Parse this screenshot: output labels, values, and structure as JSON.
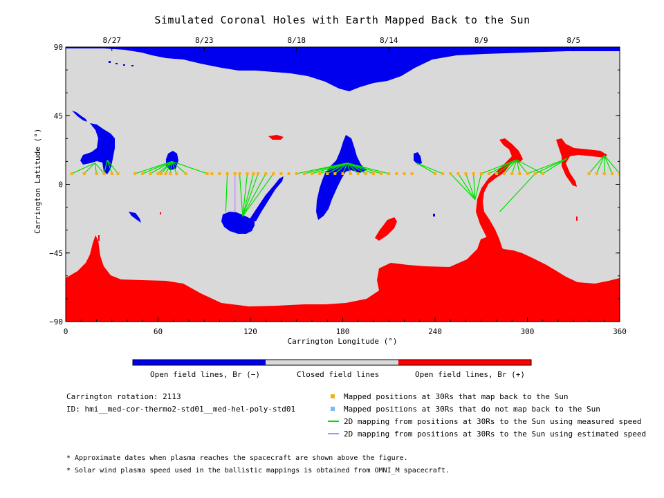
{
  "chart_data": {
    "type": "map",
    "title": "Simulated Coronal Holes with Earth Mapped Back to the Sun",
    "xlabel": "Carrington Longitude (°)",
    "ylabel": "Carrington Latitude (°)",
    "xlim": [
      0,
      360
    ],
    "ylim": [
      -90,
      90
    ],
    "x_ticks": [
      0,
      60,
      120,
      180,
      240,
      300,
      360
    ],
    "y_ticks": [
      -90,
      -45,
      0,
      45,
      90
    ],
    "top_axis": {
      "ticks": [
        {
          "lon": 30,
          "label": "8/27"
        },
        {
          "lon": 90,
          "label": "8/23"
        },
        {
          "lon": 150,
          "label": "8/18"
        },
        {
          "lon": 210,
          "label": "8/14"
        },
        {
          "lon": 270,
          "label": "8/9"
        },
        {
          "lon": 330,
          "label": "8/5"
        }
      ]
    },
    "colorbar": [
      {
        "label": "Open field lines, Br (−)",
        "color": "#0000ee"
      },
      {
        "label": "Closed field lines",
        "color": "#d9d9d9"
      },
      {
        "label": "Open field lines, Br (+)",
        "color": "#ff0000"
      }
    ],
    "legend": [
      {
        "label": "Mapped positions at 30Rs that map back to the Sun",
        "color": "#f2b01e",
        "kind": "square"
      },
      {
        "label": "Mapped positions at 30Rs that do not map back to the Sun",
        "color": "#7ab8f0",
        "kind": "square"
      },
      {
        "label": "2D mapping from positions at 30Rs to the Sun using measured speed",
        "color": "#00e000",
        "kind": "line"
      },
      {
        "label": "2D mapping from positions at 30Rs to the Sun using estimated speed",
        "color": "#c080ff",
        "kind": "line"
      }
    ],
    "mapping_latitude": 7,
    "mapping_points_lon": [
      4,
      12,
      20,
      25,
      30,
      34,
      45,
      50,
      55,
      60,
      62,
      65,
      68,
      72,
      78,
      92,
      95,
      100,
      105,
      110,
      113,
      118,
      122,
      125,
      130,
      135,
      140,
      145,
      150,
      155,
      160,
      165,
      170,
      175,
      180,
      185,
      190,
      195,
      200,
      205,
      210,
      215,
      220,
      225,
      240,
      245,
      250,
      255,
      260,
      265,
      270,
      275,
      280,
      285,
      290,
      295,
      300,
      305,
      310,
      340,
      345,
      350,
      355,
      360
    ],
    "footpoints": [
      {
        "lon": 19,
        "lat": 14,
        "from": [
          4,
          12,
          20,
          25
        ]
      },
      {
        "lon": 27,
        "lat": 16,
        "from": [
          25,
          30,
          34
        ]
      },
      {
        "lon": 69,
        "lat": 15,
        "from": [
          45,
          50,
          55,
          60,
          62,
          65,
          68,
          72,
          78,
          92
        ]
      },
      {
        "lon": 104,
        "lat": -18,
        "from": [
          105
        ]
      },
      {
        "lon": 115,
        "lat": -21,
        "from": [
          113,
          118,
          122,
          125,
          130,
          135
        ]
      },
      {
        "lon": 183,
        "lat": 14,
        "from": [
          150,
          155,
          160,
          165,
          170,
          175,
          180,
          185,
          190,
          195,
          200,
          205,
          210
        ]
      },
      {
        "lon": 228,
        "lat": 14,
        "from": [
          240,
          245
        ]
      },
      {
        "lon": 266,
        "lat": -10,
        "from": [
          250,
          255,
          260,
          265,
          270
        ]
      },
      {
        "lon": 282,
        "lat": -18,
        "from": [
          305
        ]
      },
      {
        "lon": 293,
        "lat": 16,
        "from": [
          270,
          275,
          280,
          285,
          290,
          295,
          300,
          310
        ]
      },
      {
        "lon": 326,
        "lat": 17,
        "from": [
          300,
          305,
          310
        ]
      },
      {
        "lon": 350,
        "lat": 19,
        "from": [
          340,
          345,
          350,
          355,
          360
        ]
      }
    ],
    "estimated_mapping": [
      {
        "from_lon": 110,
        "to_lon": 110,
        "to_lat": -18
      }
    ]
  },
  "info": {
    "rotation": "Carrington rotation: 2113",
    "id": "ID: hmi__med-cor-thermo2-std01__med-hel-poly-std01"
  },
  "footnotes": [
    "* Approximate dates when plasma reaches the spacecraft are shown above the figure.",
    "* Solar wind plasma speed used in the ballistic mappings is obtained from OMNI_M spacecraft."
  ]
}
